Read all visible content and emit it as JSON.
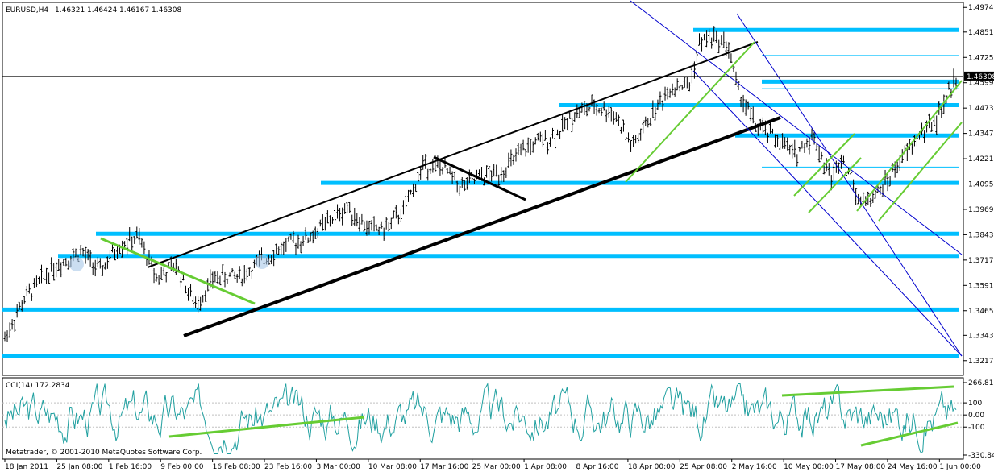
{
  "chart_data": {
    "type": "bar",
    "title": "EURUSD,H4",
    "ohlc": [
      "1.46321",
      "1.46424",
      "1.46167",
      "1.46308"
    ],
    "last_price": "1.46308",
    "colors": {
      "background": "#ffffff",
      "bars": "#000000",
      "support_resistance": "#00bfff",
      "channel_blue": "#0000cd",
      "trend_green": "#66cc33",
      "trend_black": "#000000",
      "cci_line": "#20a0a0"
    },
    "price_axis": {
      "ticks": [
        "1.49740",
        "1.48515",
        "1.47255",
        "1.45995",
        "1.44735",
        "1.43475",
        "1.42215",
        "1.40955",
        "1.39695",
        "1.38435",
        "1.37175",
        "1.35915",
        "1.34655",
        "1.33430",
        "1.32170"
      ],
      "range": [
        1.3148,
        1.4995
      ]
    },
    "time_axis": {
      "labels": [
        "18 Jan 2011",
        "25 Jan 08:00",
        "1 Feb 16:00",
        "9 Feb 00:00",
        "16 Feb 08:00",
        "23 Feb 16:00",
        "3 Mar 00:00",
        "10 Mar 08:00",
        "17 Mar 16:00",
        "25 Mar 00:00",
        "1 Apr 08:00",
        "8 Apr 16:00",
        "18 Apr 00:00",
        "25 Apr 08:00",
        "2 May 16:00",
        "10 May 00:00",
        "17 May 08:00",
        "24 May 16:00",
        "1 Jun 00:00"
      ]
    },
    "price_path": [
      [
        0,
        1.333
      ],
      [
        0.02,
        1.352
      ],
      [
        0.05,
        1.368
      ],
      [
        0.08,
        1.376
      ],
      [
        0.1,
        1.366
      ],
      [
        0.12,
        1.379
      ],
      [
        0.14,
        1.383
      ],
      [
        0.16,
        1.363
      ],
      [
        0.18,
        1.369
      ],
      [
        0.2,
        1.349
      ],
      [
        0.22,
        1.363
      ],
      [
        0.25,
        1.364
      ],
      [
        0.28,
        1.375
      ],
      [
        0.3,
        1.38
      ],
      [
        0.32,
        1.383
      ],
      [
        0.34,
        1.391
      ],
      [
        0.36,
        1.398
      ],
      [
        0.38,
        1.388
      ],
      [
        0.4,
        1.387
      ],
      [
        0.42,
        1.397
      ],
      [
        0.44,
        1.419
      ],
      [
        0.46,
        1.418
      ],
      [
        0.48,
        1.408
      ],
      [
        0.5,
        1.413
      ],
      [
        0.52,
        1.415
      ],
      [
        0.55,
        1.428
      ],
      [
        0.58,
        1.434
      ],
      [
        0.6,
        1.445
      ],
      [
        0.62,
        1.448
      ],
      [
        0.64,
        1.445
      ],
      [
        0.66,
        1.428
      ],
      [
        0.68,
        1.444
      ],
      [
        0.7,
        1.458
      ],
      [
        0.72,
        1.459
      ],
      [
        0.73,
        1.479
      ],
      [
        0.74,
        1.483
      ],
      [
        0.76,
        1.479
      ],
      [
        0.77,
        1.457
      ],
      [
        0.79,
        1.438
      ],
      [
        0.81,
        1.433
      ],
      [
        0.83,
        1.424
      ],
      [
        0.85,
        1.434
      ],
      [
        0.86,
        1.421
      ],
      [
        0.87,
        1.412
      ],
      [
        0.88,
        1.425
      ],
      [
        0.9,
        1.4
      ],
      [
        0.92,
        1.406
      ],
      [
        0.94,
        1.42
      ],
      [
        0.96,
        1.433
      ],
      [
        0.98,
        1.442
      ],
      [
        1,
        1.463
      ]
    ],
    "horizontal_levels": [
      1.4862,
      1.4605,
      1.4488,
      1.4337,
      1.4101,
      1.3848,
      1.3738,
      1.3471,
      1.3238
    ],
    "thin_levels": [
      1.4735,
      1.457,
      1.418
    ],
    "cci": {
      "label": "CCI(14) 172.2834",
      "ticks": [
        "266.819",
        "100",
        "0.00",
        "-100",
        "-330.845"
      ],
      "range": [
        -330.845,
        266.819
      ]
    },
    "copyright": "Metatrader, © 2001-2010 MetaQuotes Software Corp."
  }
}
